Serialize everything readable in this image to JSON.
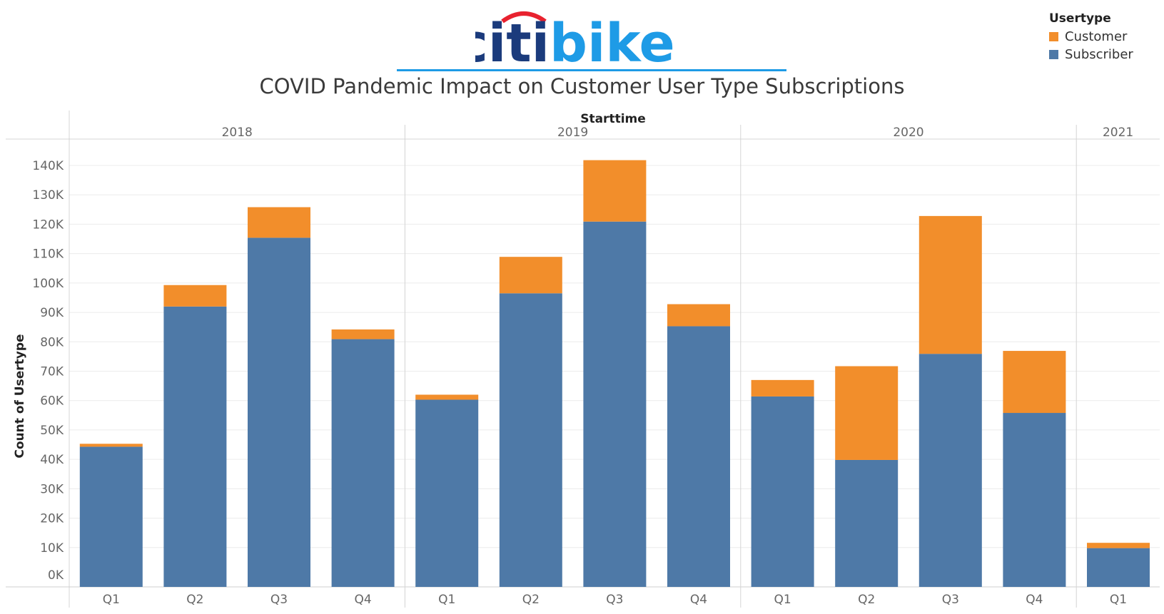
{
  "logo": {
    "text_citi": "citi",
    "text_bike": "bike",
    "color_citi": "#1b3b7c",
    "color_bike": "#1e9be6",
    "color_arc": "#e8222f"
  },
  "title": "COVID Pandemic Impact on Customer User Type Subscriptions",
  "legend": {
    "title": "Usertype",
    "items": [
      {
        "label": "Customer",
        "color": "#f28e2b"
      },
      {
        "label": "Subscriber",
        "color": "#4e79a7"
      }
    ]
  },
  "chart_data": {
    "type": "bar",
    "stacked": true,
    "x_header": "Starttime",
    "ylabel": "Count of Usertype",
    "ylim": [
      0,
      142000
    ],
    "yticks": [
      0,
      10000,
      20000,
      30000,
      40000,
      50000,
      60000,
      70000,
      80000,
      90000,
      100000,
      110000,
      120000,
      130000,
      140000
    ],
    "ytick_labels": [
      "0K",
      "10K",
      "20K",
      "30K",
      "40K",
      "50K",
      "60K",
      "70K",
      "80K",
      "90K",
      "100K",
      "110K",
      "120K",
      "130K",
      "140K"
    ],
    "groups": [
      {
        "label": "2018",
        "categories": [
          "Q1",
          "Q2",
          "Q3",
          "Q4"
        ]
      },
      {
        "label": "2019",
        "categories": [
          "Q1",
          "Q2",
          "Q3",
          "Q4"
        ]
      },
      {
        "label": "2020",
        "categories": [
          "Q1",
          "Q2",
          "Q3",
          "Q4"
        ]
      },
      {
        "label": "2021",
        "categories": [
          "Q1"
        ]
      }
    ],
    "series": [
      {
        "name": "Subscriber",
        "color": "#4e79a7",
        "values": [
          44300,
          92000,
          115400,
          80900,
          60300,
          96500,
          120900,
          85300,
          61400,
          39800,
          75900,
          55800,
          9800
        ]
      },
      {
        "name": "Customer",
        "color": "#f28e2b",
        "values": [
          1000,
          7300,
          10400,
          3300,
          1700,
          12400,
          20900,
          7500,
          5600,
          31900,
          46900,
          21100,
          1800
        ]
      }
    ],
    "grid": true
  }
}
